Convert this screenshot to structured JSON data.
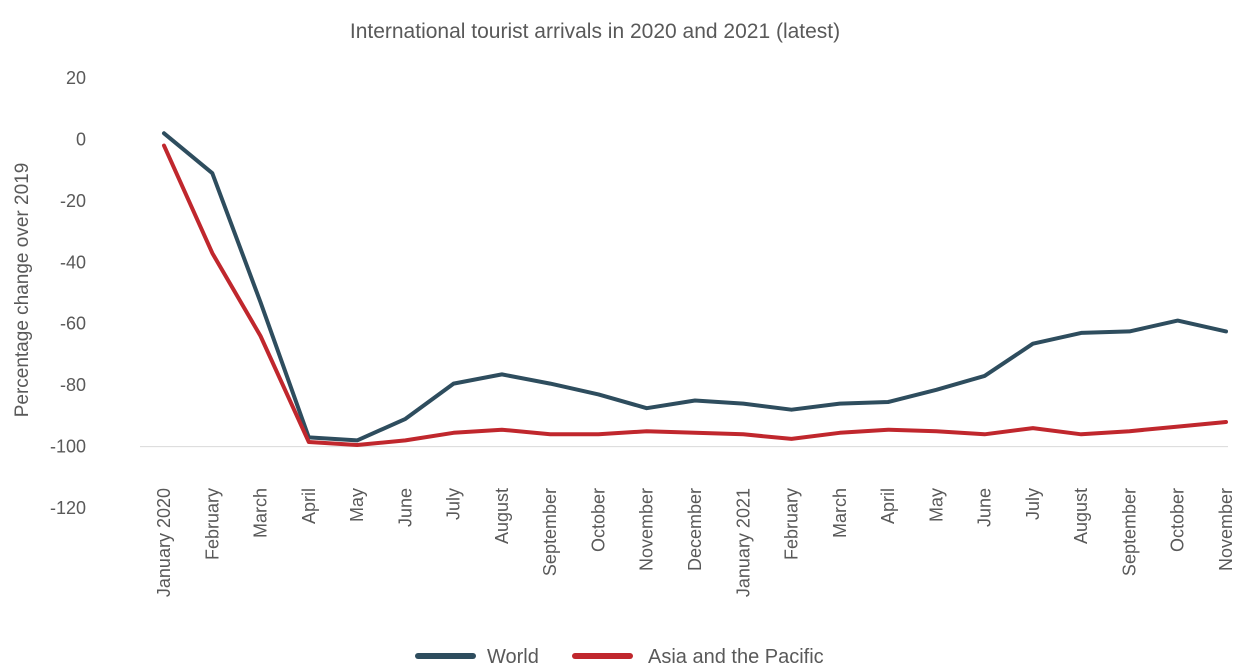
{
  "chart_data": {
    "type": "line",
    "title": "International tourist arrivals in 2020 and 2021 (latest)",
    "ylabel": "Percentage change over 2019",
    "xlabel": "",
    "ylim": [
      -120,
      20
    ],
    "yticks": [
      20,
      0,
      -20,
      -40,
      -60,
      -80,
      -100,
      -120
    ],
    "categories": [
      "January 2020",
      "February",
      "March",
      "April",
      "May",
      "June",
      "July",
      "August",
      "September",
      "October",
      "November",
      "December",
      "January 2021",
      "February",
      "March",
      "April",
      "May",
      "June",
      "July",
      "August",
      "September",
      "October",
      "November"
    ],
    "series": [
      {
        "name": "World",
        "color": "#2e4d5e",
        "values": [
          2,
          -11,
          -53,
          -97,
          -98,
          -91,
          -79.5,
          -76.5,
          -79.5,
          -83,
          -87.5,
          -85,
          -86,
          -88,
          -86,
          -85.5,
          -81.5,
          -77,
          -66.5,
          -63,
          -62.5,
          -59,
          -62.5
        ]
      },
      {
        "name": "Asia and the Pacific",
        "color": "#c0272d",
        "values": [
          -2,
          -37,
          -64,
          -98.5,
          -99.5,
          -98,
          -95.5,
          -94.5,
          -96,
          -96,
          -95,
          -95.5,
          -96,
          -97.5,
          -95.5,
          -94.5,
          -95,
          -96,
          -94,
          -96,
          -95,
          -93.5,
          -92
        ]
      }
    ],
    "legend_position": "bottom-center",
    "grid": false
  }
}
